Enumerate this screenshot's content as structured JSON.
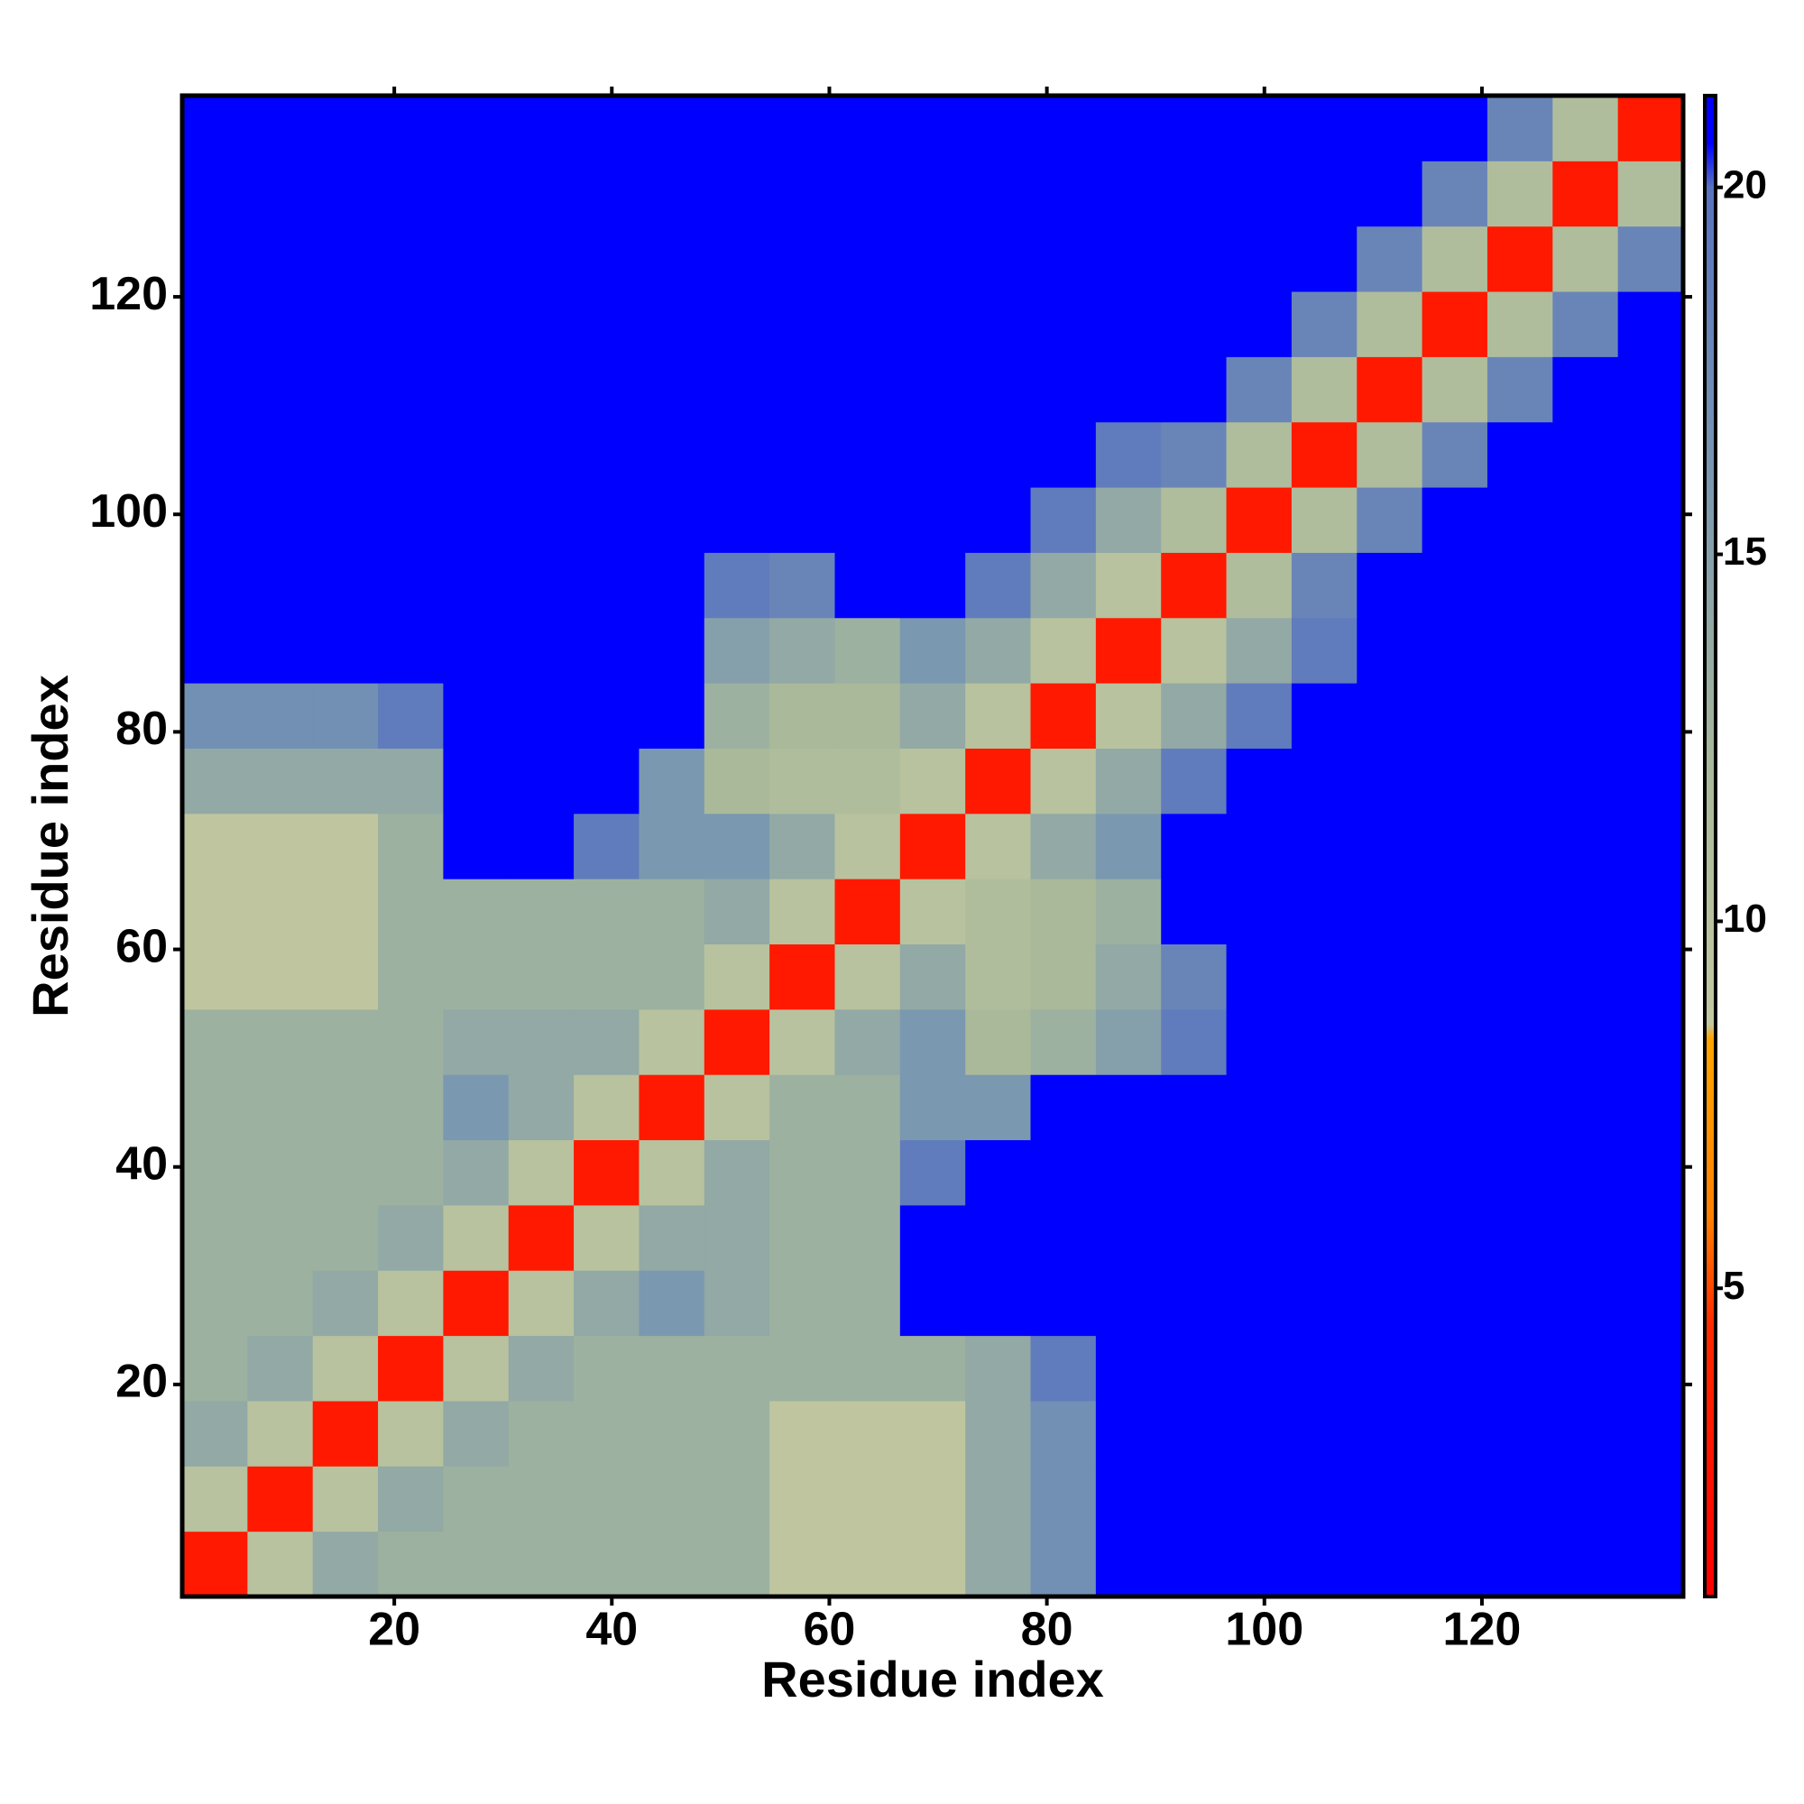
{
  "chart_data": {
    "type": "heatmap",
    "x_label": "Residue index",
    "y_label": "Residue index",
    "xlim": [
      0.5,
      138.5
    ],
    "ylim": [
      0.5,
      138.5
    ],
    "xticks": [
      20,
      40,
      60,
      80,
      100,
      120
    ],
    "yticks": [
      20,
      40,
      60,
      80,
      100,
      120
    ],
    "xbins": [
      0.5,
      6.5,
      12.5,
      18.5,
      24.5,
      30.5,
      36.5,
      42.5,
      48.5,
      54.5,
      60.5,
      66.5,
      72.5,
      78.5,
      84.5,
      90.5,
      96.5,
      102.5,
      108.5,
      114.5,
      120.5,
      126.5,
      132.5,
      138.5
    ],
    "ybins": [
      0.5,
      6.5,
      12.5,
      18.5,
      24.5,
      30.5,
      36.5,
      42.5,
      48.5,
      54.5,
      60.5,
      66.5,
      72.5,
      78.5,
      84.5,
      90.5,
      96.5,
      102.5,
      108.5,
      114.5,
      120.5,
      126.5,
      132.5,
      138.5
    ],
    "zlim": [
      0.8,
      21.25
    ],
    "zticks": [
      5,
      10,
      15,
      20
    ],
    "colorscale": [
      [
        0.8,
        "#ff0000"
      ],
      [
        4.5,
        "#ff2a00"
      ],
      [
        6,
        "#ff8000"
      ],
      [
        8.4,
        "#ffa500"
      ],
      [
        8.6,
        "#c2c8a0"
      ],
      [
        12,
        "#a9b99a"
      ],
      [
        16,
        "#7a98b0"
      ],
      [
        20,
        "#5872c0"
      ],
      [
        20.6,
        "#0000ff"
      ],
      [
        21.25,
        "#0000ff"
      ]
    ],
    "z": [
      [
        3,
        10,
        14,
        13,
        13,
        13,
        13,
        13,
        13,
        9,
        9,
        9,
        14,
        17,
        21,
        21,
        21,
        21,
        21,
        21,
        21,
        21,
        21
      ],
      [
        10,
        3,
        10,
        14,
        13,
        13,
        13,
        13,
        13,
        9,
        9,
        9,
        14,
        17,
        21,
        21,
        21,
        21,
        21,
        21,
        21,
        21,
        21
      ],
      [
        14,
        10,
        3,
        10,
        14,
        13,
        13,
        13,
        13,
        9,
        9,
        9,
        14,
        17,
        21,
        21,
        21,
        21,
        21,
        21,
        21,
        21,
        21
      ],
      [
        13,
        14,
        10,
        3,
        10,
        14,
        13,
        13,
        13,
        13,
        13,
        13,
        14,
        19,
        21,
        21,
        21,
        21,
        21,
        21,
        21,
        21,
        21
      ],
      [
        13,
        13,
        14,
        10,
        3,
        10,
        14,
        16,
        14,
        13,
        13,
        21,
        21,
        21,
        21,
        21,
        21,
        21,
        21,
        21,
        21,
        21,
        21
      ],
      [
        13,
        13,
        13,
        14,
        10,
        3,
        10,
        14,
        14,
        13,
        13,
        21,
        21,
        21,
        21,
        21,
        21,
        21,
        21,
        21,
        21,
        21,
        21
      ],
      [
        13,
        13,
        13,
        13,
        14,
        10,
        3,
        10,
        14,
        13,
        13,
        19,
        21,
        21,
        21,
        21,
        21,
        21,
        21,
        21,
        21,
        21,
        21
      ],
      [
        13,
        13,
        13,
        13,
        16,
        14,
        10,
        3,
        10,
        13,
        13,
        16,
        16,
        21,
        21,
        21,
        21,
        21,
        21,
        21,
        21,
        21,
        21
      ],
      [
        13,
        13,
        13,
        13,
        14,
        14,
        14,
        10,
        3,
        10,
        14,
        16,
        12,
        13,
        15,
        19,
        21,
        21,
        21,
        21,
        21,
        21,
        21
      ],
      [
        9,
        9,
        9,
        13,
        13,
        13,
        13,
        13,
        10,
        3,
        10,
        14,
        11,
        12,
        14,
        18,
        21,
        21,
        21,
        21,
        21,
        21,
        21
      ],
      [
        9,
        9,
        9,
        13,
        13,
        13,
        13,
        13,
        14,
        10,
        3,
        10,
        11,
        12,
        13,
        21,
        21,
        21,
        21,
        21,
        21,
        21,
        21
      ],
      [
        9,
        9,
        9,
        13,
        21,
        21,
        19,
        16,
        16,
        14,
        10,
        3,
        10,
        14,
        16,
        21,
        21,
        21,
        21,
        21,
        21,
        21,
        21
      ],
      [
        14,
        14,
        14,
        14,
        21,
        21,
        21,
        16,
        12,
        11,
        11,
        10,
        3,
        10,
        14,
        19,
        21,
        21,
        21,
        21,
        21,
        21,
        21
      ],
      [
        17,
        17,
        17,
        19,
        21,
        21,
        21,
        21,
        13,
        12,
        12,
        14,
        10,
        3,
        10,
        14,
        19,
        21,
        21,
        21,
        21,
        21,
        21
      ],
      [
        21,
        21,
        21,
        21,
        21,
        21,
        21,
        21,
        15,
        14,
        13,
        16,
        14,
        10,
        3,
        10,
        14,
        19,
        21,
        21,
        21,
        21,
        21
      ],
      [
        21,
        21,
        21,
        21,
        21,
        21,
        21,
        21,
        19,
        18,
        21,
        21,
        19,
        14,
        10,
        3,
        11,
        18,
        21,
        21,
        21,
        21,
        21
      ],
      [
        21,
        21,
        21,
        21,
        21,
        21,
        21,
        21,
        21,
        21,
        21,
        21,
        21,
        19,
        14,
        11,
        3,
        11,
        18,
        21,
        21,
        21,
        21
      ],
      [
        21,
        21,
        21,
        21,
        21,
        21,
        21,
        21,
        21,
        21,
        21,
        21,
        21,
        21,
        19,
        18,
        11,
        3,
        11,
        18,
        21,
        21,
        21
      ],
      [
        21,
        21,
        21,
        21,
        21,
        21,
        21,
        21,
        21,
        21,
        21,
        21,
        21,
        21,
        21,
        21,
        18,
        11,
        3,
        11,
        18,
        21,
        21
      ],
      [
        21,
        21,
        21,
        21,
        21,
        21,
        21,
        21,
        21,
        21,
        21,
        21,
        21,
        21,
        21,
        21,
        21,
        18,
        11,
        3,
        11,
        18,
        21
      ],
      [
        21,
        21,
        21,
        21,
        21,
        21,
        21,
        21,
        21,
        21,
        21,
        21,
        21,
        21,
        21,
        21,
        21,
        21,
        18,
        11,
        3,
        11,
        18
      ],
      [
        21,
        21,
        21,
        21,
        21,
        21,
        21,
        21,
        21,
        21,
        21,
        21,
        21,
        21,
        21,
        21,
        21,
        21,
        21,
        18,
        11,
        3,
        11
      ],
      [
        21,
        21,
        21,
        21,
        21,
        21,
        21,
        21,
        21,
        21,
        21,
        21,
        21,
        21,
        21,
        21,
        21,
        21,
        21,
        21,
        18,
        11,
        3
      ]
    ]
  }
}
